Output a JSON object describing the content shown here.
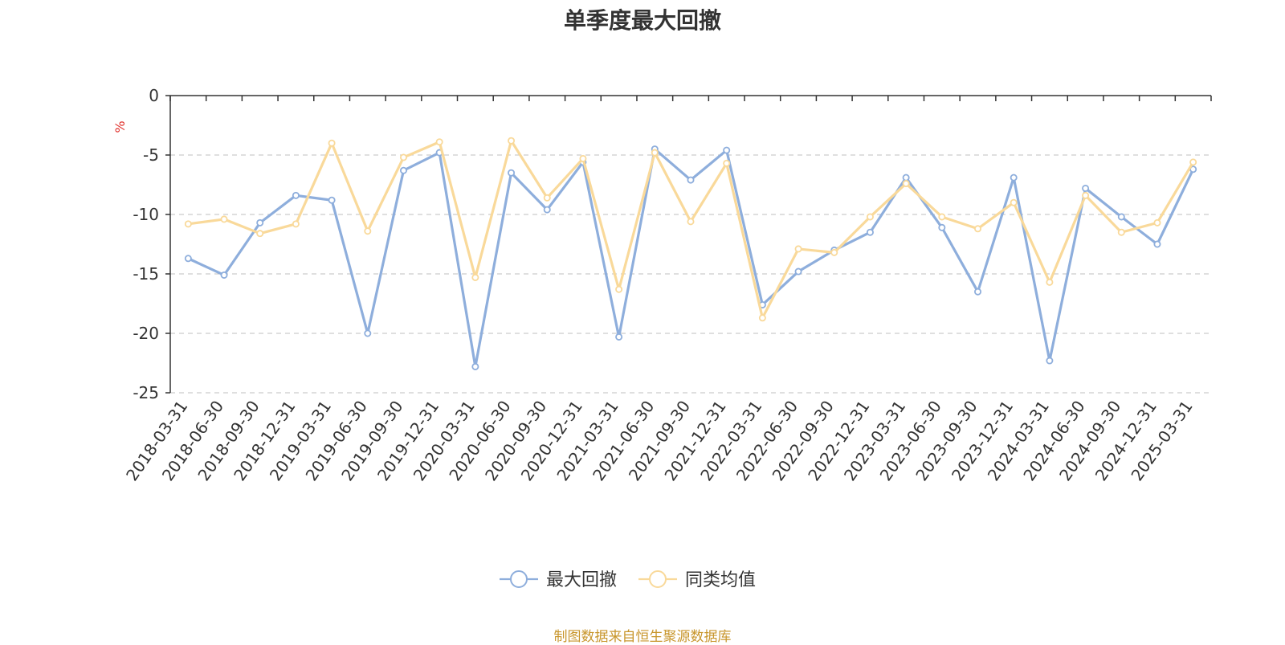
{
  "chart_data": {
    "type": "line",
    "title": "单季度最大回撤",
    "ylabel": "%",
    "ylim": [
      -25,
      0
    ],
    "yticks": [
      0,
      -5,
      -10,
      -15,
      -20,
      -25
    ],
    "grid": true,
    "legend_position": "bottom-center",
    "categories": [
      "2018-03-31",
      "2018-06-30",
      "2018-09-30",
      "2018-12-31",
      "2019-03-31",
      "2019-06-30",
      "2019-09-30",
      "2019-12-31",
      "2020-03-31",
      "2020-06-30",
      "2020-09-30",
      "2020-12-31",
      "2021-03-31",
      "2021-06-30",
      "2021-09-30",
      "2021-12-31",
      "2022-03-31",
      "2022-06-30",
      "2022-09-30",
      "2022-12-31",
      "2023-03-31",
      "2023-06-30",
      "2023-09-30",
      "2023-12-31",
      "2024-03-31",
      "2024-06-30",
      "2024-09-30",
      "2024-12-31",
      "2025-03-31"
    ],
    "series": [
      {
        "name": "最大回撤",
        "color": "#8eaedc",
        "values": [
          -13.7,
          -15.1,
          -10.7,
          -8.4,
          -8.8,
          -20.0,
          -6.3,
          -4.8,
          -22.8,
          -6.5,
          -9.6,
          -5.6,
          -20.3,
          -4.5,
          -7.1,
          -4.6,
          -17.6,
          -14.8,
          -13.0,
          -11.5,
          -6.9,
          -11.1,
          -16.5,
          -6.9,
          -22.3,
          -7.8,
          -10.2,
          -12.5,
          -6.2
        ]
      },
      {
        "name": "同类均值",
        "color": "#f9d99a",
        "values": [
          -10.8,
          -10.4,
          -11.6,
          -10.8,
          -4.0,
          -11.4,
          -5.2,
          -3.9,
          -15.3,
          -3.8,
          -8.6,
          -5.3,
          -16.3,
          -4.8,
          -10.6,
          -5.7,
          -18.7,
          -12.9,
          -13.2,
          -10.2,
          -7.4,
          -10.2,
          -11.2,
          -9.0,
          -15.7,
          -8.4,
          -11.5,
          -10.7,
          -5.6
        ]
      }
    ]
  },
  "footer": {
    "source": "制图数据来自恒生聚源数据库"
  }
}
